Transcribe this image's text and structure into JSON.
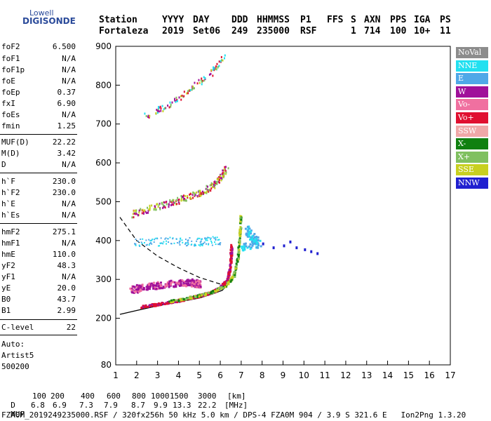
{
  "logo": {
    "line1": "Lowell",
    "line2": "DIGISONDE"
  },
  "header": {
    "cols": [
      {
        "label": "Station",
        "value": "Fortaleza"
      },
      {
        "label": "YYYY",
        "value": "2019"
      },
      {
        "label": "DAY",
        "value": "Set06"
      },
      {
        "label": "DDD",
        "value": "249"
      },
      {
        "label": "HHMMSS",
        "value": "235000"
      },
      {
        "label": "P1",
        "value": "RSF"
      },
      {
        "label": "FFS",
        "value": ""
      },
      {
        "label": "S",
        "value": "1"
      },
      {
        "label": "AXN",
        "value": "714"
      },
      {
        "label": "PPS",
        "value": "100"
      },
      {
        "label": "IGA",
        "value": "10+"
      },
      {
        "label": "PS",
        "value": "11"
      }
    ]
  },
  "params": [
    {
      "k": "foF2",
      "v": "6.500"
    },
    {
      "k": "foF1",
      "v": "N/A"
    },
    {
      "k": "foF1p",
      "v": "N/A"
    },
    {
      "k": "foE",
      "v": "N/A"
    },
    {
      "k": "foEp",
      "v": "0.37"
    },
    {
      "k": "fxI",
      "v": "6.90"
    },
    {
      "k": "foEs",
      "v": "N/A"
    },
    {
      "k": "fmin",
      "v": "1.25"
    },
    {
      "k": "MUF(D)",
      "v": "22.22"
    },
    {
      "k": "M(D)",
      "v": "3.42"
    },
    {
      "k": "D",
      "v": "N/A"
    },
    {
      "k": "h`F",
      "v": "230.0"
    },
    {
      "k": "h`F2",
      "v": "230.0"
    },
    {
      "k": "h`E",
      "v": "N/A"
    },
    {
      "k": "h`Es",
      "v": "N/A"
    },
    {
      "k": "hmF2",
      "v": "275.1"
    },
    {
      "k": "hmF1",
      "v": "N/A"
    },
    {
      "k": "hmE",
      "v": "110.0"
    },
    {
      "k": "yF2",
      "v": "48.3"
    },
    {
      "k": "yF1",
      "v": "N/A"
    },
    {
      "k": "yE",
      "v": "20.0"
    },
    {
      "k": "B0",
      "v": "43.7"
    },
    {
      "k": "B1",
      "v": "2.99"
    },
    {
      "k": "C-level",
      "v": "22"
    }
  ],
  "auto": {
    "l1": "Auto:",
    "l2": "Artist5",
    "l3": "500200"
  },
  "legend": [
    {
      "label": "NoVal",
      "color": "#8c8c8c"
    },
    {
      "label": "NNE",
      "color": "#22e0f0"
    },
    {
      "label": "E",
      "color": "#4fa8e8"
    },
    {
      "label": "W",
      "color": "#a0109a"
    },
    {
      "label": "Vo-",
      "color": "#f070a0"
    },
    {
      "label": "Vo+",
      "color": "#e01030"
    },
    {
      "label": "SSW",
      "color": "#f0a8a8"
    },
    {
      "label": "X-",
      "color": "#108010"
    },
    {
      "label": "X+",
      "color": "#80c060"
    },
    {
      "label": "SSE",
      "color": "#c8d020"
    },
    {
      "label": "NNW",
      "color": "#2020d0"
    }
  ],
  "chart_data": {
    "type": "scatter",
    "xlabel": "",
    "ylabel": "",
    "xlim": [
      1,
      17
    ],
    "ylim": [
      80,
      900
    ],
    "x_ticks": [
      "1",
      "2",
      "3",
      "4",
      "5",
      "6",
      "7",
      "8",
      "9",
      "10",
      "11",
      "12",
      "13",
      "14",
      "15",
      "16",
      "17"
    ],
    "y_ticks": [
      "200",
      "300",
      "400",
      "500",
      "600",
      "700",
      "800",
      "900"
    ],
    "y_bottom_label": "80",
    "profile_line": [
      [
        1.2,
        210
      ],
      [
        2,
        220
      ],
      [
        3,
        232
      ],
      [
        4,
        242
      ],
      [
        5,
        252
      ],
      [
        5.6,
        262
      ],
      [
        6.1,
        272
      ],
      [
        6.4,
        290
      ]
    ],
    "profile_dashed": [
      [
        1.2,
        460
      ],
      [
        2,
        400
      ],
      [
        3,
        360
      ],
      [
        4,
        330
      ],
      [
        5,
        305
      ],
      [
        6,
        288
      ],
      [
        6.4,
        282
      ]
    ],
    "trace_o": [
      [
        2.2,
        232
      ],
      [
        3,
        238
      ],
      [
        4,
        248
      ],
      [
        5,
        260
      ],
      [
        5.6,
        270
      ],
      [
        6,
        282
      ],
      [
        6.3,
        300
      ],
      [
        6.45,
        340
      ],
      [
        6.5,
        390
      ]
    ],
    "trace_x": [
      [
        3.5,
        245
      ],
      [
        4.5,
        255
      ],
      [
        5.5,
        268
      ],
      [
        6.2,
        285
      ],
      [
        6.6,
        310
      ],
      [
        6.8,
        355
      ],
      [
        6.9,
        420
      ],
      [
        6.95,
        470
      ]
    ],
    "trace_w": [
      [
        1.7,
        275
      ],
      [
        2.5,
        285
      ],
      [
        3.5,
        290
      ],
      [
        4.5,
        295
      ],
      [
        5,
        290
      ]
    ],
    "multi_2": [
      [
        1.8,
        470
      ],
      [
        3,
        490
      ],
      [
        4,
        505
      ],
      [
        5,
        525
      ],
      [
        5.8,
        550
      ],
      [
        6.3,
        590
      ]
    ],
    "multi_3": [
      [
        2.2,
        720
      ],
      [
        3.5,
        750
      ],
      [
        4.5,
        790
      ],
      [
        5.5,
        830
      ],
      [
        6.2,
        880
      ]
    ],
    "e_blobs": [
      [
        7.2,
        430
      ],
      [
        7.5,
        410
      ],
      [
        7.8,
        395
      ],
      [
        6.9,
        380
      ]
    ],
    "nnw_points": [
      [
        8,
        395
      ],
      [
        8.5,
        385
      ],
      [
        9,
        390
      ],
      [
        9.3,
        400
      ],
      [
        9.6,
        385
      ],
      [
        10,
        380
      ],
      [
        10.3,
        375
      ],
      [
        10.6,
        370
      ]
    ],
    "blue_band": [
      [
        1.8,
        395
      ],
      [
        3.5,
        400
      ],
      [
        5,
        398
      ],
      [
        6,
        402
      ]
    ]
  },
  "footer": {
    "d_label": "D",
    "d_values": [
      "100",
      "200",
      "400",
      "600",
      "800",
      "1000",
      "1500",
      "3000",
      "[km]"
    ],
    "muf_label": "MUF",
    "muf_values": [
      "6.8",
      "6.9",
      "7.3",
      "7.9",
      "8.7",
      "9.9",
      "13.3",
      "22.2",
      "[MHz]"
    ],
    "info": "FZA0M_2019249235000.RSF / 320fx256h 50 kHz 5.0 km / DPS-4 FZA0M 904 / 3.9 S 321.6 E   Ion2Png 1.3.20"
  }
}
